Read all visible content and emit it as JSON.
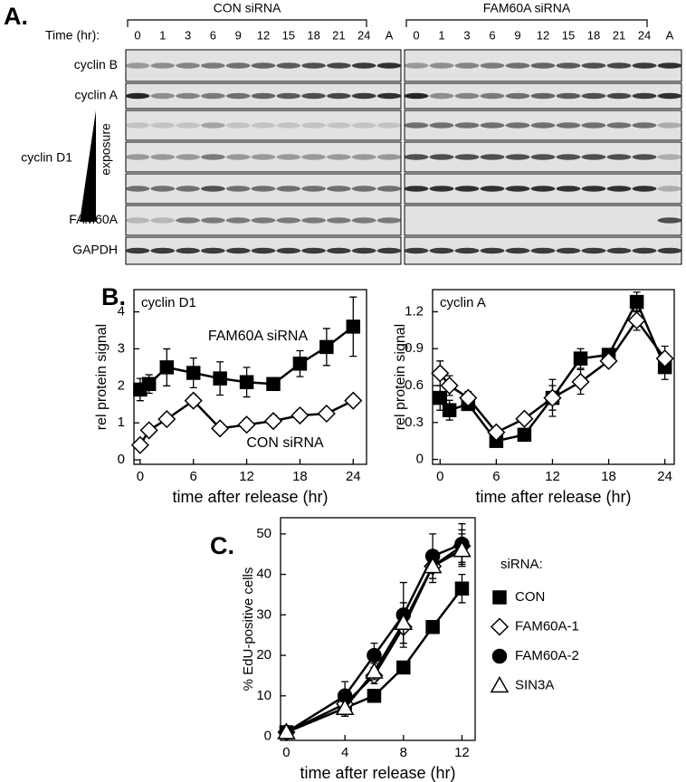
{
  "panel_labels": [
    "A.",
    "B.",
    "C."
  ],
  "blot": {
    "time_label": "Time  (hr):",
    "exposure_label": "exposure",
    "groups": [
      {
        "name": "CON siRNA",
        "lanes": [
          "0",
          "1",
          "3",
          "6",
          "9",
          "12",
          "15",
          "18",
          "21",
          "24",
          "A"
        ]
      },
      {
        "name": "FAM60A siRNA",
        "lanes": [
          "0",
          "1",
          "3",
          "6",
          "9",
          "12",
          "15",
          "18",
          "21",
          "24",
          "A"
        ]
      }
    ],
    "rows": [
      "cyclin B",
      "cyclin A",
      "cyclin D1",
      "FAM60A",
      "GAPDH"
    ]
  },
  "chart_data": [
    {
      "type": "line",
      "annotation": "cyclin D1",
      "xlabel": "time after release (hr)",
      "ylabel": "rel protein signal",
      "x": [
        0,
        1,
        3,
        6,
        9,
        12,
        15,
        18,
        21,
        24
      ],
      "xlim": [
        -0.7,
        25.5
      ],
      "xticks": [
        0,
        6,
        12,
        18,
        24
      ],
      "ylim": [
        -0.12,
        4.6
      ],
      "yticks": [
        0,
        1,
        2,
        3,
        4
      ],
      "series": [
        {
          "name": "FAM60A siRNA",
          "color": "#000000",
          "marker": "square",
          "marker_fill": "#000000",
          "values": [
            1.9,
            2.05,
            2.5,
            2.35,
            2.2,
            2.1,
            2.05,
            2.6,
            3.05,
            3.6
          ],
          "errors": [
            0.3,
            0.25,
            0.5,
            0.4,
            0.45,
            0.4,
            0.15,
            0.35,
            0.5,
            0.8
          ]
        },
        {
          "name": "CON siRNA",
          "color": "#000000",
          "marker": "diamond",
          "marker_fill": "#ffffff",
          "values": [
            0.4,
            0.8,
            1.1,
            1.6,
            0.85,
            0.95,
            1.05,
            1.2,
            1.25,
            1.6
          ],
          "errors": [
            0.1,
            0.1,
            0.1,
            0.15,
            0.1,
            0.15,
            0.15,
            0.15,
            0.1,
            0.1
          ]
        }
      ]
    },
    {
      "type": "line",
      "annotation": "cyclin A",
      "xlabel": "time after release (hr)",
      "ylabel": "rel protein signal",
      "x": [
        0,
        1,
        3,
        6,
        9,
        12,
        15,
        18,
        21,
        24
      ],
      "xlim": [
        -0.8,
        25
      ],
      "xticks": [
        0,
        6,
        12,
        18,
        24
      ],
      "ylim": [
        -0.04,
        1.38
      ],
      "yticks": [
        0,
        0.3,
        0.6,
        0.9,
        1.2
      ],
      "series": [
        {
          "color": "#000000",
          "marker": "square",
          "marker_fill": "#000000",
          "values": [
            0.5,
            0.4,
            0.45,
            0.15,
            0.2,
            0.5,
            0.82,
            0.85,
            1.28,
            0.75
          ],
          "errors": [
            0.1,
            0.08,
            0.05,
            0.03,
            0.05,
            0.1,
            0.08,
            0.05,
            0.08,
            0.1
          ]
        },
        {
          "color": "#000000",
          "marker": "diamond",
          "marker_fill": "#ffffff",
          "values": [
            0.7,
            0.6,
            0.5,
            0.22,
            0.33,
            0.5,
            0.63,
            0.8,
            1.13,
            0.82
          ],
          "errors": [
            0.1,
            0.08,
            0.05,
            0.03,
            0.03,
            0.15,
            0.1,
            0.03,
            0.08,
            0.1
          ]
        }
      ]
    },
    {
      "type": "line",
      "xlabel": "time after release (hr)",
      "ylabel": "% EdU-positive cells",
      "legend_title": "siRNA:",
      "legend": "right",
      "x": [
        0,
        4,
        6,
        8,
        10,
        12
      ],
      "xlim": [
        -0.4,
        12.9
      ],
      "xticks": [
        0,
        4,
        8,
        12
      ],
      "ylim": [
        -1,
        54
      ],
      "yticks": [
        0,
        10,
        20,
        30,
        40,
        50
      ],
      "series": [
        {
          "name": "CON",
          "color": "#000000",
          "marker": "square",
          "marker_fill": "#000000",
          "values": [
            1,
            7,
            10,
            17,
            27,
            36.5
          ],
          "errors": [
            0.5,
            2,
            1,
            1,
            1,
            3.5
          ]
        },
        {
          "name": "FAM60A-1",
          "color": "#000000",
          "marker": "diamond",
          "marker_fill": "#ffffff",
          "values": [
            1,
            8,
            15,
            27,
            42,
            47
          ],
          "errors": [
            0.5,
            3,
            2,
            4,
            4,
            4
          ]
        },
        {
          "name": "FAM60A-2",
          "color": "#000000",
          "marker": "circle",
          "marker_fill": "#000000",
          "values": [
            1,
            10,
            20,
            30,
            44.5,
            47.5
          ],
          "errors": [
            0.5,
            3.5,
            3,
            8,
            5.5,
            5
          ]
        },
        {
          "name": "SIN3A",
          "color": "#000000",
          "marker": "triangle",
          "marker_fill": "#ffffff",
          "values": [
            1,
            7,
            16,
            28,
            42,
            46
          ],
          "errors": [
            0.5,
            2,
            2,
            5,
            3,
            4
          ]
        }
      ]
    }
  ]
}
